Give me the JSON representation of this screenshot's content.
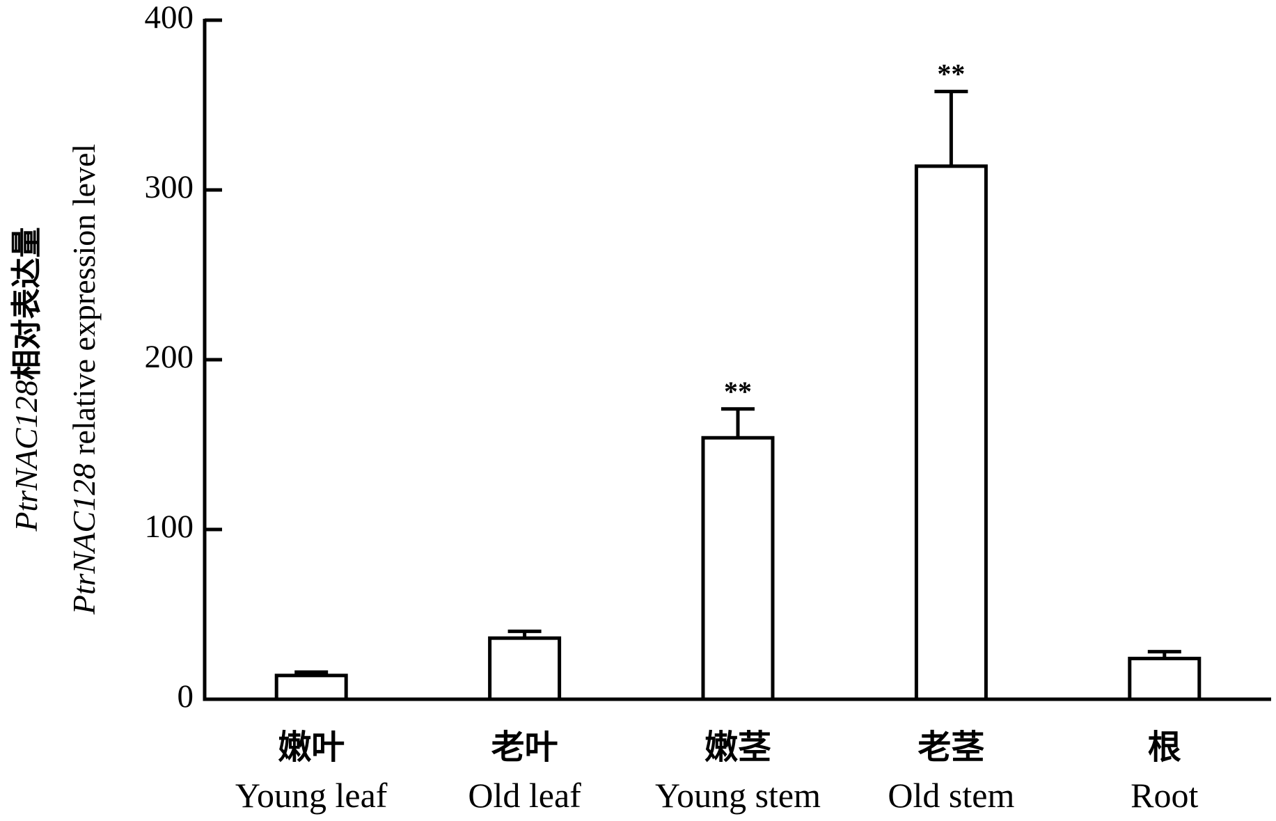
{
  "chart_data": {
    "type": "bar",
    "gene": "PtrNAC128",
    "y_label": [
      "相对表达量",
      "relative expression level"
    ],
    "categories": [
      "Young leaf",
      "Old leaf",
      "Young stem",
      "Old stem",
      "Root"
    ],
    "categories_cn": [
      "嫩叶",
      "老叶",
      "嫩茎",
      "老茎",
      "根"
    ],
    "series": [
      {
        "values": [
          14,
          36,
          154,
          314,
          24
        ],
        "errors": [
          2,
          4,
          17,
          44,
          4
        ],
        "color": "#ffffff"
      }
    ],
    "significance": [
      null,
      null,
      "**",
      "**",
      null
    ],
    "ylim": [
      0,
      400
    ],
    "yticks": [
      0,
      100,
      200,
      300,
      400
    ]
  }
}
